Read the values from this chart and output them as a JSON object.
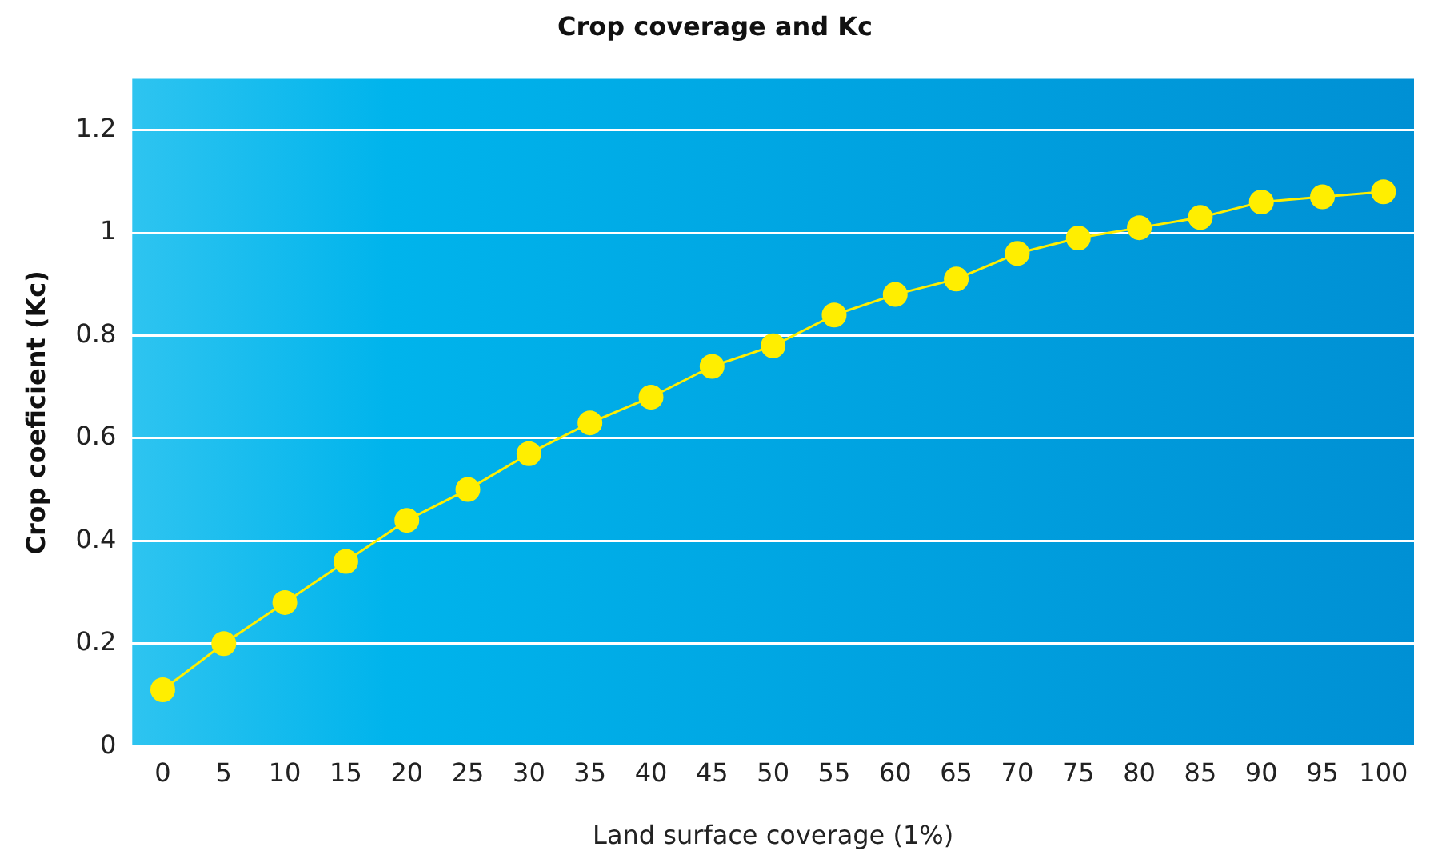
{
  "chart_data": {
    "type": "line",
    "title": "Crop coverage and Kc",
    "xlabel": "Land surface coverage (1%)",
    "ylabel": "Crop coeficient (Kc)",
    "categories": [
      "0",
      "5",
      "10",
      "15",
      "20",
      "25",
      "30",
      "35",
      "40",
      "45",
      "50",
      "55",
      "60",
      "65",
      "70",
      "75",
      "80",
      "85",
      "90",
      "95",
      "100"
    ],
    "series": [
      {
        "color": "#ffee00",
        "values": [
          0.11,
          0.2,
          0.28,
          0.36,
          0.44,
          0.5,
          0.57,
          0.63,
          0.68,
          0.74,
          0.78,
          0.84,
          0.88,
          0.91,
          0.96,
          0.99,
          1.01,
          1.03,
          1.06,
          1.07,
          1.08
        ]
      }
    ],
    "ylim": [
      0,
      1.3
    ],
    "yticks": [
      0,
      0.2,
      0.4,
      0.6,
      0.8,
      1,
      1.2
    ],
    "grid": "y",
    "legend": false,
    "marker": "circle",
    "line_style": "solid"
  }
}
